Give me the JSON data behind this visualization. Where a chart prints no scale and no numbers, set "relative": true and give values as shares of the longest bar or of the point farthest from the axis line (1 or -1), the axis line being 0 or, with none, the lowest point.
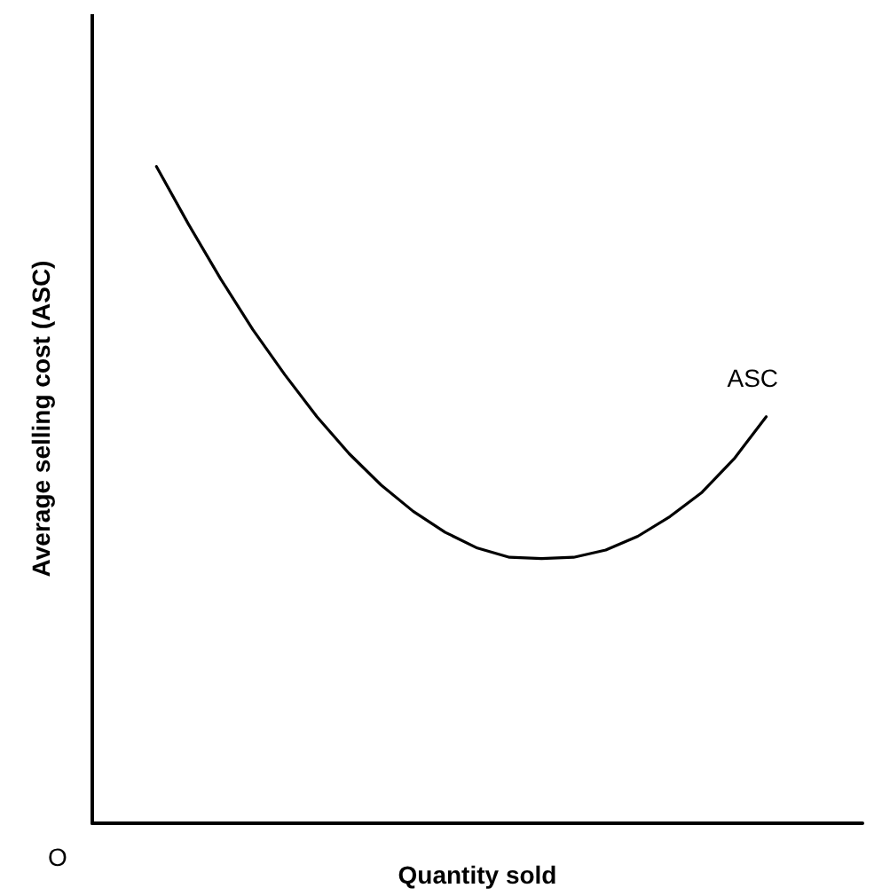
{
  "chart_data": {
    "type": "line",
    "relative": true,
    "xlabel": "Quantity sold",
    "ylabel": "Average selling cost (ASC)",
    "annotations": [
      "O"
    ],
    "categories": [
      null,
      null,
      null,
      null,
      null,
      null,
      null,
      null,
      null,
      null,
      null,
      null,
      null,
      null,
      null,
      null,
      null,
      null,
      null,
      null,
      null,
      null,
      null,
      null,
      null
    ],
    "series": [
      {
        "name": "ASC",
        "color": "#000000",
        "values": [
          null,
          null,
          1.0,
          0.912,
          0.829,
          0.752,
          0.683,
          0.619,
          0.563,
          0.515,
          0.475,
          0.443,
          0.419,
          0.405,
          0.403,
          0.405,
          0.416,
          0.437,
          0.467,
          0.504,
          0.555,
          0.619,
          null,
          null,
          null
        ]
      }
    ],
    "marker": "none",
    "line_style": "solid",
    "grid": false,
    "legend": false
  }
}
